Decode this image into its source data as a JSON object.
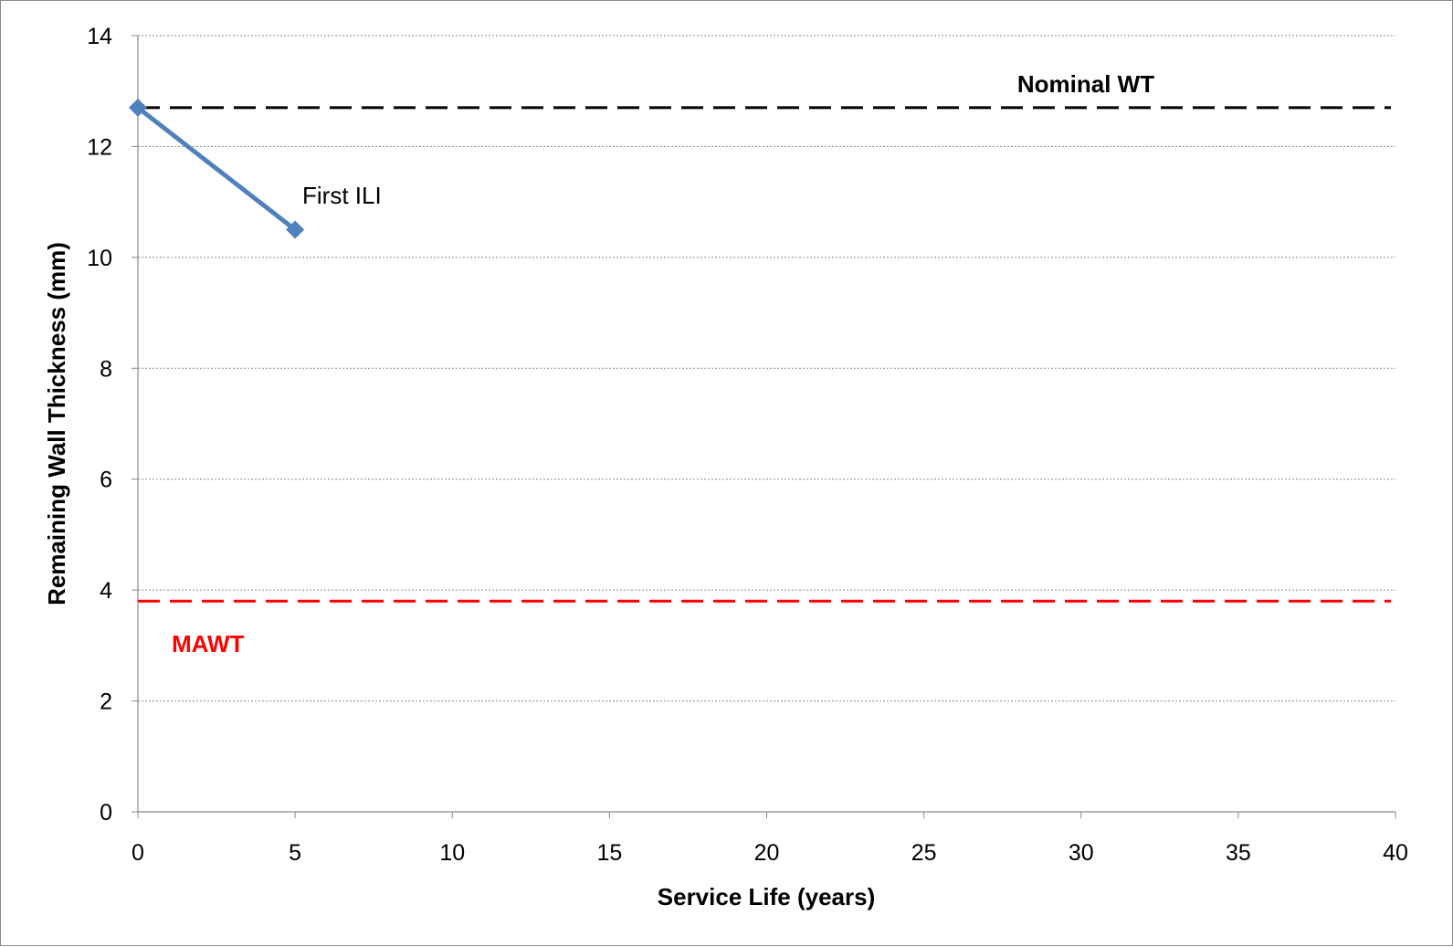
{
  "chart_data": {
    "type": "line",
    "xlabel": "Service Life (years)",
    "ylabel": "Remaining Wall Thickness (mm)",
    "xlim": [
      0,
      40
    ],
    "ylim": [
      0,
      14
    ],
    "x_ticks": [
      "0",
      "5",
      "10",
      "15",
      "20",
      "25",
      "30",
      "35",
      "40"
    ],
    "y_ticks": [
      "0",
      "2",
      "4",
      "6",
      "8",
      "10",
      "12",
      "14"
    ],
    "grid": "horizontal",
    "series": [
      {
        "x": [
          0,
          5
        ],
        "y": [
          12.7,
          10.5
        ],
        "color": "#4f81bd",
        "marker": "diamond"
      }
    ],
    "reference_lines": [
      {
        "label": "Nominal WT",
        "y": 12.7,
        "color": "#000000",
        "style": "dashed"
      },
      {
        "label": "MAWT",
        "y": 3.8,
        "color": "#ff0000",
        "style": "dashed"
      }
    ],
    "annotations": [
      {
        "text": "First ILI",
        "x": 5,
        "y": 10.5
      }
    ]
  }
}
